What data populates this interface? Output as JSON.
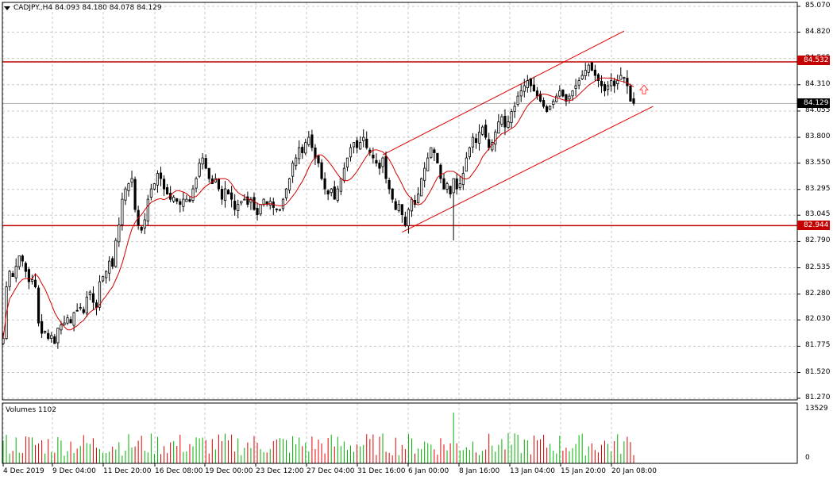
{
  "header": {
    "symbol": "CADJPY.,H4",
    "ohlc": "84.093 84.180 84.078 84.129"
  },
  "volumes_label": "Volumes 1102",
  "current_price_label": "84.129",
  "colors": {
    "grid": "#c8c8c8",
    "candle": "#000000",
    "ma": "#d00000",
    "level": "#c40000",
    "channel": "#e00000",
    "volume_up": "#00b000",
    "volume_down": "#e00000",
    "arrow": "#ff4040"
  },
  "chart_data": {
    "type": "candlestick",
    "symbol": "CADJPY",
    "timeframe": "H4",
    "y_ticks": [
      "85.070",
      "84.820",
      "84.565",
      "84.310",
      "84.055",
      "83.800",
      "83.550",
      "83.295",
      "83.045",
      "82.790",
      "82.535",
      "82.280",
      "82.030",
      "81.775",
      "81.520",
      "81.270"
    ],
    "y_range": [
      81.27,
      85.07
    ],
    "x_ticks": [
      "4 Dec 2019",
      "9 Dec 04:00",
      "11 Dec 20:00",
      "16 Dec 08:00",
      "19 Dec 00:00",
      "23 Dec 12:00",
      "27 Dec 04:00",
      "31 Dec 16:00",
      "6 Jan 00:00",
      "8 Jan 16:00",
      "13 Jan 04:00",
      "15 Jan 20:00",
      "20 Jan 08:00"
    ],
    "horizontal_levels": [
      {
        "label": "84.532",
        "value": 84.532
      },
      {
        "label": "82.944",
        "value": 82.944
      }
    ],
    "channel": {
      "upper": [
        {
          "bar": 118,
          "price": 83.63
        },
        {
          "bar": 193,
          "price": 84.83
        }
      ],
      "lower": [
        {
          "bar": 124,
          "price": 82.88
        },
        {
          "bar": 202,
          "price": 84.1
        }
      ]
    },
    "last_close": 84.129,
    "volume_axis": {
      "max_label": "13529",
      "min_label": "0"
    },
    "volume_peak_bar": 140,
    "closes": [
      81.85,
      82.35,
      82.5,
      82.45,
      82.55,
      82.65,
      82.6,
      82.5,
      82.4,
      82.42,
      82.35,
      82.0,
      81.9,
      81.92,
      81.85,
      81.88,
      81.8,
      81.95,
      81.98,
      82.0,
      82.05,
      82.0,
      82.1,
      82.12,
      82.15,
      82.1,
      82.25,
      82.3,
      82.2,
      82.15,
      82.4,
      82.45,
      82.5,
      82.6,
      82.55,
      82.8,
      82.95,
      83.2,
      83.3,
      83.35,
      83.4,
      83.1,
      82.95,
      82.9,
      83.0,
      83.2,
      83.3,
      83.35,
      83.45,
      83.4,
      83.3,
      83.25,
      83.2,
      83.22,
      83.18,
      83.15,
      83.2,
      83.2,
      83.18,
      83.3,
      83.4,
      83.55,
      83.6,
      83.5,
      83.4,
      83.35,
      83.4,
      83.3,
      83.2,
      83.3,
      83.25,
      83.2,
      83.1,
      83.15,
      83.18,
      83.2,
      83.15,
      83.2,
      83.1,
      83.05,
      83.15,
      83.2,
      83.15,
      83.18,
      83.12,
      83.1,
      83.1,
      83.2,
      83.3,
      83.4,
      83.55,
      83.6,
      83.7,
      83.65,
      83.75,
      83.8,
      83.7,
      83.6,
      83.55,
      83.4,
      83.3,
      83.25,
      83.3,
      83.2,
      83.3,
      83.4,
      83.5,
      83.6,
      83.7,
      83.75,
      83.7,
      83.75,
      83.8,
      83.7,
      83.65,
      83.6,
      83.55,
      83.5,
      83.6,
      83.4,
      83.3,
      83.2,
      83.1,
      83.15,
      83.05,
      82.95,
      83.1,
      83.2,
      83.15,
      83.25,
      83.4,
      83.5,
      83.6,
      83.7,
      83.65,
      83.55,
      83.4,
      83.3,
      83.35,
      83.25,
      83.4,
      83.3,
      83.35,
      83.45,
      83.6,
      83.7,
      83.8,
      83.75,
      83.85,
      83.9,
      83.8,
      83.7,
      83.75,
      83.85,
      83.95,
      84.0,
      83.9,
      83.95,
      84.05,
      84.1,
      84.2,
      84.25,
      84.3,
      84.35,
      84.3,
      84.25,
      84.2,
      84.15,
      84.1,
      84.05,
      84.1,
      84.15,
      84.2,
      84.25,
      84.2,
      84.15,
      84.2,
      84.25,
      84.3,
      84.35,
      84.4,
      84.45,
      84.5,
      84.45,
      84.4,
      84.35,
      84.3,
      84.25,
      84.3,
      84.35,
      84.3,
      84.35,
      84.4,
      84.38,
      84.3,
      84.15,
      84.13
    ]
  }
}
